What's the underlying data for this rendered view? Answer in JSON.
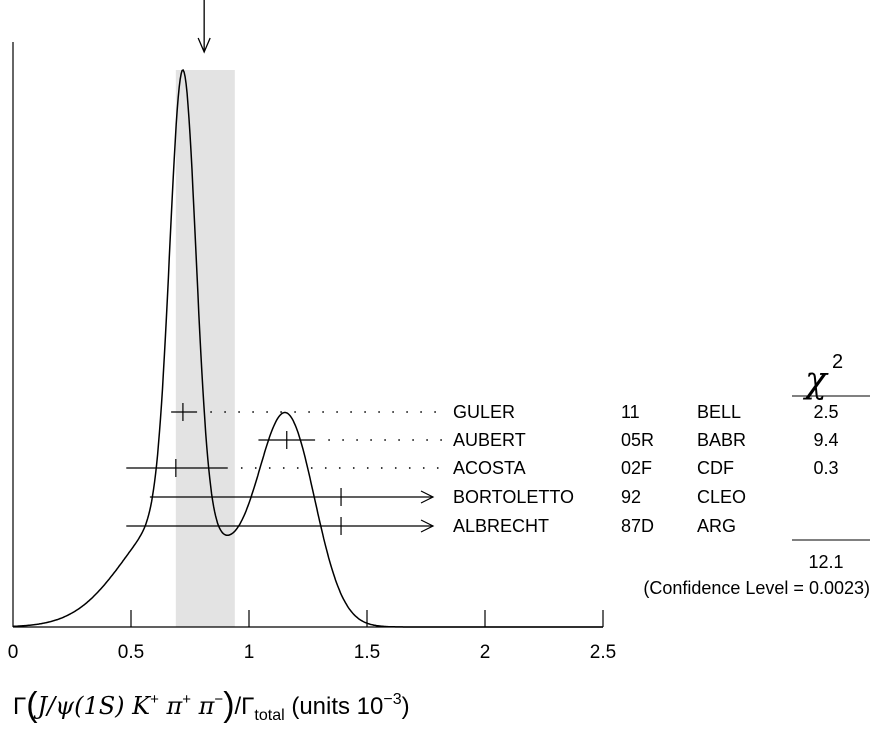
{
  "chart_data": {
    "type": "ideogram",
    "xlabel": {
      "prefix": "Γ",
      "main": "J/ψ(1S) K",
      "sup1": "+",
      "pi1": " π",
      "sup2": "+",
      "pi2": " π",
      "sup3": "−",
      "mid": "/Γ",
      "sub": "total",
      "units": " (units 10",
      "exp": "−3",
      "close": ")"
    },
    "xlim": [
      0,
      2.5
    ],
    "xticks": [
      0,
      0.5,
      1,
      1.5,
      2,
      2.5
    ],
    "xtick_labels": [
      "0",
      "0.5",
      "1",
      "1.5",
      "2",
      "2.5"
    ],
    "average": {
      "value": 0.81,
      "band": [
        0.69,
        0.94
      ]
    },
    "chi2_header": "χ",
    "chi2_exp": "2",
    "measurements": [
      {
        "author": "GULER",
        "year": "11",
        "experiment": "BELL",
        "value": 0.72,
        "low": 0.67,
        "high": 0.78,
        "chi2": "2.5",
        "limit": false
      },
      {
        "author": "AUBERT",
        "year": "05R",
        "experiment": "BABR",
        "value": 1.16,
        "low": 1.04,
        "high": 1.28,
        "chi2": "9.4",
        "limit": false
      },
      {
        "author": "ACOSTA",
        "year": "02F",
        "experiment": "CDF",
        "value": 0.69,
        "low": 0.48,
        "high": 0.91,
        "chi2": "0.3",
        "limit": false
      },
      {
        "author": "BORTOLETTO",
        "year": "92",
        "experiment": "CLEO",
        "value": 1.39,
        "low": 0.58,
        "high": 1.39,
        "chi2": "",
        "limit": true
      },
      {
        "author": "ALBRECHT",
        "year": "87D",
        "experiment": "ARG",
        "value": 1.39,
        "low": 0.48,
        "high": 1.39,
        "chi2": "",
        "limit": true
      }
    ],
    "chi2_total": "12.1",
    "confidence_level": "(Confidence Level = 0.0023)"
  }
}
